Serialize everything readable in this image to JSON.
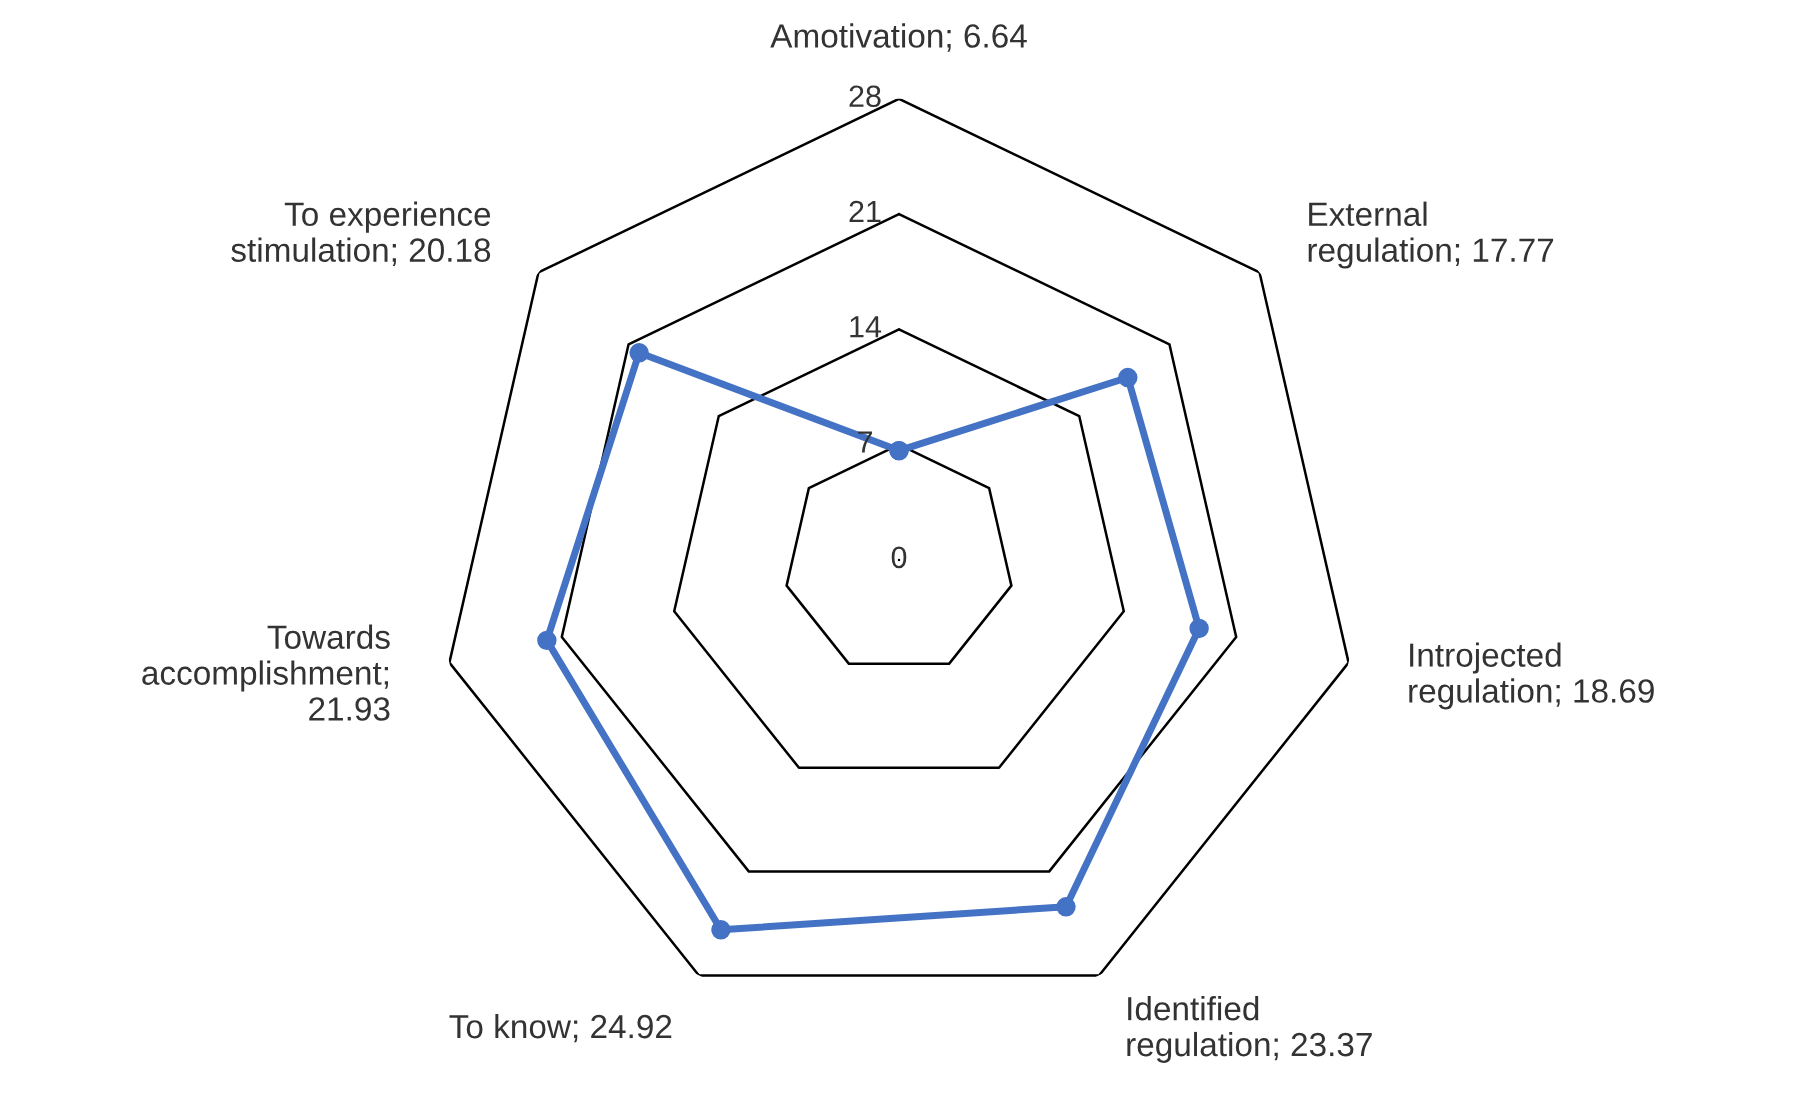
{
  "chart_data": {
    "type": "radar",
    "categories": [
      "Amotivation; 6.64",
      "External regulation; 17.77",
      "Introjected regulation; 18.69",
      "Identified regulation; 23.37",
      "To know; 24.92",
      "Towards accomplishment; 21.93",
      "To experience stimulation; 20.18"
    ],
    "series": [
      {
        "color": "#4472c4",
        "values": [
          6.64,
          17.77,
          18.69,
          23.37,
          24.92,
          21.93,
          20.18
        ]
      }
    ],
    "ylim": [
      0,
      28
    ],
    "yticks": [
      0,
      7,
      14,
      21,
      28
    ],
    "grid": true,
    "marker": "circle",
    "line_style": "solid"
  }
}
